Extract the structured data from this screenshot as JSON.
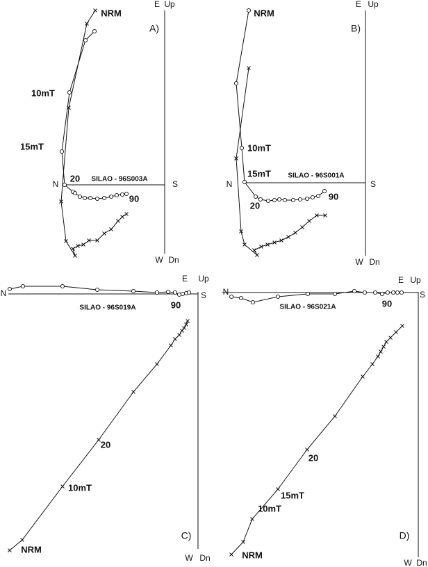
{
  "panels": [
    {
      "label": "A)",
      "sample": "SILAO - 96S003A",
      "axis_labels": [
        "E",
        "Up",
        "N",
        "S",
        "W",
        "Dn"
      ],
      "steps": [
        "NRM",
        "10mT",
        "15mT",
        "20",
        "90"
      ]
    },
    {
      "label": "B)",
      "sample": "SILAO - 96S001A",
      "axis_labels": [
        "E",
        "Up",
        "N",
        "S",
        "W",
        "Dn"
      ],
      "steps": [
        "NRM",
        "10mT",
        "15mT",
        "20",
        "90"
      ]
    },
    {
      "label": "C)",
      "sample": "SILAO - 96S019A",
      "axis_labels": [
        "E",
        "Up",
        "N",
        "S",
        "W",
        "Dn"
      ],
      "steps": [
        "NRM",
        "10mT",
        "20",
        "90"
      ]
    },
    {
      "label": "D)",
      "sample": "SILAO - 96S021A",
      "axis_labels": [
        "E",
        "Up",
        "N",
        "S",
        "W",
        "Dn"
      ],
      "steps": [
        "NRM",
        "10mT",
        "15mT",
        "20",
        "90"
      ]
    }
  ]
}
